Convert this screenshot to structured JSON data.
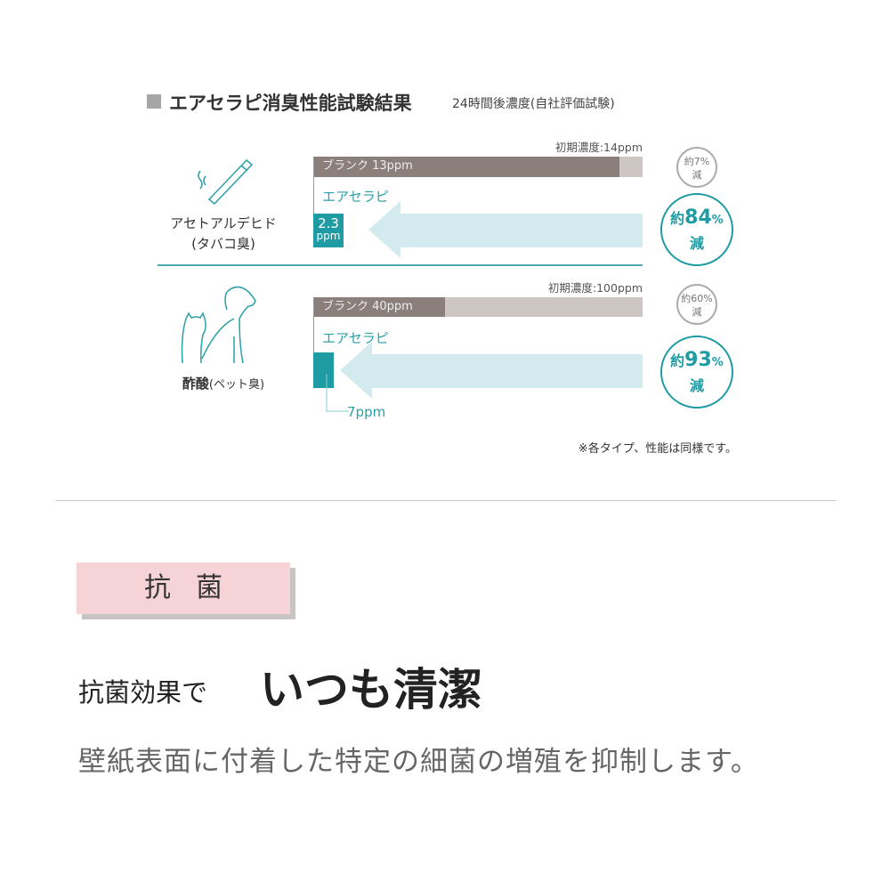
{
  "title": "エアセラピ消臭性能試験結果",
  "subtitle": "24時間後濃度(自社評価試験)",
  "colors": {
    "teal": "#1f9ba3",
    "blank": "#8a7f7b",
    "track": "#cdc6c2",
    "arrow": "#d3ebee",
    "pink": "#f6d3d6"
  },
  "chart_data": [
    {
      "type": "bar",
      "category": "アセトアルデヒド",
      "category_note": "(タバコ臭)",
      "icon": "cigarette-icon",
      "initial_label": "初期濃度:14ppm",
      "initial": 14,
      "unit": "ppm",
      "blank": {
        "label": "ブランク 13ppm",
        "value": 13
      },
      "aero": {
        "label": "エアセラピ",
        "value": 2.3,
        "value_text": "2.3",
        "unit_text": "ppm"
      },
      "blank_reduction": {
        "prefix": "約",
        "value": "7%",
        "suffix": "減"
      },
      "aero_reduction": {
        "prefix": "約",
        "value": "84",
        "pct": "%",
        "suffix": "減"
      }
    },
    {
      "type": "bar",
      "category": "酢酸",
      "category_note": "(ペット臭)",
      "icon": "dog-cat-icon",
      "initial_label": "初期濃度:100ppm",
      "initial": 100,
      "unit": "ppm",
      "blank": {
        "label": "ブランク  40ppm",
        "value": 40
      },
      "aero": {
        "label": "エアセラピ",
        "value": 7,
        "value_text": "7ppm"
      },
      "blank_reduction": {
        "prefix": "約",
        "value": "60%",
        "suffix": "減"
      },
      "aero_reduction": {
        "prefix": "約",
        "value": "93",
        "pct": "%",
        "suffix": "減"
      }
    }
  ],
  "note": "※各タイプ、性能は同様です。",
  "antibacterial": {
    "badge": "抗菌",
    "heading_small": "抗菌効果で",
    "heading_large": "いつも清潔",
    "description": "壁紙表面に付着した特定の細菌の増殖を抑制します。"
  }
}
